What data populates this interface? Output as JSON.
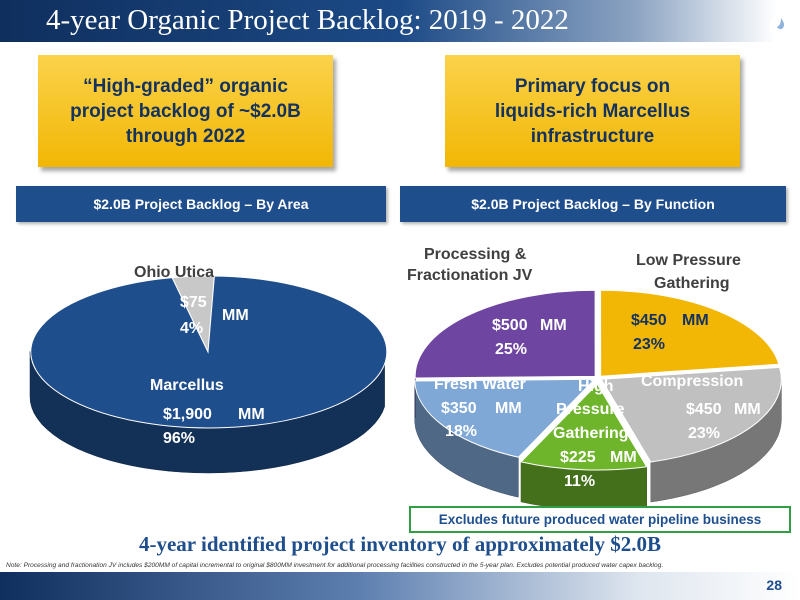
{
  "slide": {
    "title": "4-year Organic Project Backlog: 2019 - 2022",
    "page_number": "28",
    "callout_left": "“High-graded” organic\nproject backlog of ~$2.0B\nthrough 2022",
    "callout_right": "Primary focus on\nliquids-rich Marcellus\ninfrastructure",
    "section_left": "$2.0B Project Backlog – By Area",
    "section_right": "$2.0B Project Backlog – By Function",
    "exclusion": "Excludes future produced water pipeline business",
    "summary": "4-year identified project inventory of approximately $2.0B",
    "note": "Note: Processing and fractionation JV includes $200MM of capital incremental to original $800MM investment for additional processing facilities constructed in the 5-year plan. Excludes potential produced water capex backlog.",
    "logo_icon": "flame-logo-icon"
  },
  "chart_data": [
    {
      "type": "pie",
      "title": "$2.0B Project Backlog – By Area",
      "unit": "MM",
      "slices": [
        {
          "name": "Marcellus",
          "value": 1900,
          "value_label": "$1,900",
          "unit_label": "MM",
          "percent": "96%",
          "color": "#1f4e8c"
        },
        {
          "name": "Ohio Utica",
          "value": 75,
          "value_label": "$75",
          "unit_label": "MM",
          "percent": "4%",
          "color": "#c8c8c8"
        }
      ]
    },
    {
      "type": "pie",
      "title": "$2.0B Project Backlog – By Function",
      "unit": "MM",
      "slices": [
        {
          "name": "Low Pressure Gathering",
          "value": 450,
          "value_label": "$450",
          "unit_label": "MM",
          "percent": "23%",
          "color": "#f2b705"
        },
        {
          "name": "Compression",
          "value": 450,
          "value_label": "$450",
          "unit_label": "MM",
          "percent": "23%",
          "color": "#c0c0c0"
        },
        {
          "name": "High Pressure Gathering",
          "value": 225,
          "value_label": "$225",
          "unit_label": "MM",
          "percent": "11%",
          "color": "#6fb52c"
        },
        {
          "name": "Fresh Water",
          "value": 350,
          "value_label": "$350",
          "unit_label": "MM",
          "percent": "18%",
          "color": "#7fa8d6"
        },
        {
          "name": "Processing & Fractionation JV",
          "value": 500,
          "value_label": "$500",
          "unit_label": "MM",
          "percent": "25%",
          "color": "#6e45a0"
        }
      ]
    }
  ]
}
